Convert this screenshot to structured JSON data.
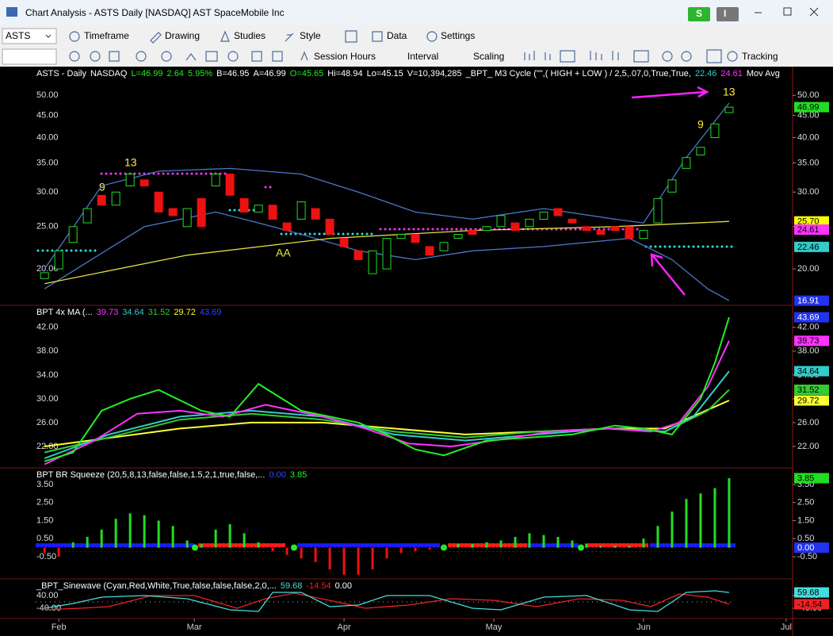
{
  "window": {
    "title": "Chart Analysis - ASTS Daily [NASDAQ] AST SpaceMobile Inc",
    "buttons": [
      "S",
      "I"
    ]
  },
  "toolbar": {
    "symbol": "ASTS",
    "menus": [
      "Timeframe",
      "Drawing",
      "Studies",
      "Style",
      "Data",
      "Settings"
    ],
    "menus2": [
      "Session Hours",
      "Interval",
      "Scaling",
      "Tracking"
    ]
  },
  "time_axis": {
    "xlim": [
      -0.8,
      105.9
    ],
    "xticks": [
      {
        "value": 3,
        "label": "Feb"
      },
      {
        "value": 22,
        "label": "Mar"
      },
      {
        "value": 43,
        "label": "Apr"
      },
      {
        "value": 64,
        "label": "May"
      },
      {
        "value": 85,
        "label": "Jun"
      },
      {
        "value": 105,
        "label": "Jul"
      }
    ]
  },
  "annotations": [
    "13",
    "9",
    "9",
    "13",
    "AA"
  ],
  "chart_data": [
    {
      "type": "candlestick",
      "log_scale": true,
      "header": [
        "ASTS - Daily",
        "NASDAQ",
        "L=46.99",
        "2.64",
        "5.95%",
        "B=46.95",
        "A=46.99",
        "O=45.65",
        "Hi=48.94",
        "Lo=45.15",
        "V=10,394,285",
        "_BPT_ M3 Cycle (\"\",( HIGH  +  LOW ) / 2,5,.07,0,True,True,",
        "22.46",
        "24.61",
        "Mov Avg"
      ],
      "ylim": [
        16.5,
        58.2
      ],
      "yticks": [
        {
          "value": 20,
          "label": "20.00"
        },
        {
          "value": 25,
          "label": "25.00"
        },
        {
          "value": 30,
          "label": "30.00"
        },
        {
          "value": 35,
          "label": "35.00"
        },
        {
          "value": 40,
          "label": "40.00"
        },
        {
          "value": 45,
          "label": "45.00"
        },
        {
          "value": 50,
          "label": "50.00"
        }
      ],
      "up_color": "#22dd22",
      "down_color": "#ee1111",
      "x": [
        1,
        3,
        5,
        7,
        9,
        11,
        13,
        15,
        17,
        19,
        21,
        23,
        25,
        27,
        29,
        31,
        33,
        35,
        37,
        39,
        41,
        43,
        45,
        47,
        49,
        51,
        53,
        55,
        57,
        59,
        61,
        63,
        65,
        67,
        69,
        71,
        73,
        75,
        77,
        79,
        81,
        83,
        85,
        87,
        89,
        91,
        93,
        95,
        97
      ],
      "open": [
        19,
        20,
        23,
        25.5,
        29.5,
        28,
        31,
        32,
        30,
        27.5,
        25,
        29,
        31,
        33,
        29,
        27,
        28,
        25.5,
        26,
        27.5,
        26,
        23.5,
        22,
        19.5,
        20,
        23.5,
        24,
        22.5,
        22,
        23.5,
        24.5,
        24.5,
        25,
        25.5,
        25,
        26,
        27.5,
        26,
        25,
        24.5,
        25,
        25,
        23.5,
        25.5,
        30,
        34,
        36.5,
        40,
        45.65
      ],
      "close": [
        19.6,
        22,
        25,
        27.5,
        28,
        30,
        33,
        31,
        27,
        26.5,
        27.5,
        25,
        33,
        29.5,
        27,
        28,
        26,
        24.5,
        28.5,
        26,
        24,
        22.5,
        21,
        22,
        23.5,
        24,
        23,
        21.5,
        23,
        24,
        24,
        25,
        26.5,
        24.5,
        26,
        27,
        26.5,
        25.5,
        24.5,
        24,
        24.5,
        23.5,
        24.5,
        29,
        32,
        36,
        38,
        43,
        46.99
      ],
      "series": [
        {
          "color": "#4a78c8",
          "x": [
            1,
            9,
            17,
            27,
            37,
            45,
            53,
            61,
            71,
            81,
            85,
            91,
            97
          ],
          "values": [
            20,
            31,
            33.5,
            34,
            33,
            30,
            27,
            26,
            27.5,
            26,
            25.5,
            36,
            48
          ]
        },
        {
          "color": "#4a78c8",
          "x": [
            1,
            15,
            25,
            31,
            37,
            45,
            53,
            61,
            71,
            83,
            89,
            94,
            97
          ],
          "values": [
            18,
            25,
            27,
            25.5,
            24,
            22,
            21,
            22,
            22.5,
            23.5,
            21,
            18,
            16.91
          ]
        },
        {
          "color": "#e0e040",
          "x": [
            1,
            21,
            41,
            61,
            81,
            97
          ],
          "values": [
            18.5,
            21.5,
            23.5,
            24.5,
            25,
            25.7
          ]
        }
      ],
      "badges": [
        {
          "value": 46.99,
          "color": "#22dd22"
        },
        {
          "value": 25.7,
          "label": "25.70",
          "color": "#ffff00"
        },
        {
          "value": 24.61,
          "color": "#ff33ff"
        },
        {
          "value": 22.46,
          "color": "#33cccc"
        },
        {
          "value": 16.91,
          "color": "#2233ee"
        }
      ]
    },
    {
      "type": "line",
      "header": [
        "BPT 4x MA (...",
        "39.73",
        "34.64",
        "31.52",
        "29.72",
        "43.69"
      ],
      "ylim": [
        18.4,
        45.7
      ],
      "yticks": [
        {
          "value": 22,
          "label": "22.00"
        },
        {
          "value": 26,
          "label": "26.00"
        },
        {
          "value": 30,
          "label": "30.00"
        },
        {
          "value": 34,
          "label": "34.00"
        },
        {
          "value": 38,
          "label": "38.00"
        },
        {
          "value": 42,
          "label": "42.00"
        }
      ],
      "series": [
        {
          "color": "#ffff33",
          "x": [
            1,
            20,
            30,
            40,
            50,
            60,
            70,
            80,
            88,
            97
          ],
          "values": [
            22,
            25,
            26,
            26,
            25,
            24,
            24.5,
            25,
            25,
            29.72
          ]
        },
        {
          "color": "#33cc33",
          "x": [
            1,
            10,
            20,
            30,
            40,
            50,
            60,
            70,
            80,
            88,
            94,
            97
          ],
          "values": [
            21,
            23.5,
            26.5,
            27.5,
            26.5,
            24.5,
            23.5,
            24.5,
            25,
            24.5,
            28,
            31.52
          ]
        },
        {
          "color": "#33cccc",
          "x": [
            1,
            10,
            20,
            30,
            40,
            50,
            60,
            70,
            80,
            88,
            92,
            97
          ],
          "values": [
            20,
            24,
            27,
            28,
            27,
            24,
            23,
            24,
            25,
            24.5,
            27,
            34.64
          ]
        },
        {
          "color": "#ff33ff",
          "x": [
            1,
            8,
            14,
            20,
            26,
            32,
            40,
            46,
            52,
            58,
            64,
            72,
            80,
            86,
            90,
            94,
            97
          ],
          "values": [
            19,
            23,
            27.5,
            28,
            27,
            29,
            27,
            25,
            22.5,
            22,
            23,
            24.5,
            25,
            24.5,
            26,
            32,
            39.73
          ]
        },
        {
          "color": "#22ee22",
          "x": [
            1,
            5,
            9,
            13,
            17,
            23,
            27,
            31,
            37,
            41,
            45,
            49,
            53,
            57,
            63,
            69,
            75,
            81,
            85,
            89,
            93,
            95,
            97
          ],
          "values": [
            19.5,
            21,
            28,
            30,
            31.5,
            28,
            27,
            32.5,
            28,
            27,
            26,
            24,
            21.5,
            20.5,
            23,
            23.5,
            24,
            25.5,
            25,
            24,
            30,
            36,
            43.69
          ]
        }
      ],
      "badges": [
        {
          "value": 43.69,
          "color": "#2233ee"
        },
        {
          "value": 39.73,
          "color": "#ff33ff"
        },
        {
          "value": 34.64,
          "color": "#33cccc"
        },
        {
          "value": 31.52,
          "color": "#33cc33"
        },
        {
          "value": 29.72,
          "color": "#ffff33"
        }
      ]
    },
    {
      "type": "histogram",
      "header": [
        "BPT BR Squeeze (20,5,8,13,false,false,1.5,2,1,true,false,...",
        "0.00",
        "3.85"
      ],
      "ylim": [
        -1.73,
        4.42
      ],
      "yticks": [
        {
          "value": -0.5,
          "label": "-0.50"
        },
        {
          "value": 0.5,
          "label": "0.50"
        },
        {
          "value": 1.5,
          "label": "1.50"
        },
        {
          "value": 2.5,
          "label": "2.50"
        },
        {
          "value": 3.5,
          "label": "3.50"
        }
      ],
      "up_color": "#22dd22",
      "down_color": "#ee1111",
      "x": [
        1,
        3,
        5,
        7,
        9,
        11,
        13,
        15,
        17,
        19,
        21,
        23,
        25,
        27,
        29,
        31,
        33,
        35,
        37,
        39,
        41,
        43,
        45,
        47,
        49,
        51,
        53,
        55,
        57,
        59,
        61,
        63,
        65,
        67,
        69,
        71,
        73,
        75,
        77,
        79,
        81,
        83,
        85,
        87,
        89,
        91,
        93,
        95,
        97
      ],
      "values": [
        -0.3,
        -0.5,
        0.3,
        0.6,
        1,
        1.6,
        1.9,
        1.8,
        1.5,
        1.2,
        0.4,
        0.2,
        1,
        1.3,
        0.8,
        0.3,
        -0.2,
        -0.4,
        -0.6,
        -0.8,
        -1.2,
        -1.5,
        -1.5,
        -1.2,
        -0.6,
        -0.3,
        -0.2,
        -0.1,
        0.1,
        0.2,
        0.2,
        0.3,
        0.4,
        0.6,
        0.8,
        0.7,
        0.6,
        0.4,
        0.2,
        0.1,
        0.1,
        0.1,
        0.5,
        1.2,
        2,
        2.7,
        3,
        3.3,
        3.85
      ],
      "badges": [
        {
          "value": 3.85,
          "color": "#22dd22"
        },
        {
          "value": 0,
          "label": "0.00",
          "color": "#2233ee"
        }
      ]
    },
    {
      "type": "line",
      "header": [
        "_BPT_Sinewave (Cyan,Red,White,True,false,false,false,2,0,...",
        "59.68",
        "-14.54",
        "0.00"
      ],
      "ylim": [
        -105,
        145
      ],
      "yticks": [
        {
          "value": -40,
          "label": "-40.00"
        },
        {
          "value": 40,
          "label": "40.00"
        }
      ],
      "series": [
        {
          "color": "#ee2222",
          "x": [
            1,
            6,
            10,
            16,
            22,
            28,
            32,
            36,
            42,
            46,
            52,
            58,
            64,
            70,
            76,
            82,
            86,
            90,
            94,
            97
          ],
          "values": [
            -50,
            -40,
            -30,
            40,
            40,
            -40,
            20,
            55,
            0,
            -40,
            -20,
            20,
            10,
            -30,
            20,
            10,
            -30,
            50,
            30,
            -14.54
          ]
        },
        {
          "color": "#44dddd",
          "x": [
            1,
            5,
            9,
            15,
            21,
            27,
            31,
            33,
            37,
            41,
            45,
            49,
            55,
            61,
            65,
            71,
            77,
            83,
            87,
            91,
            95,
            97
          ],
          "values": [
            -40,
            -10,
            30,
            40,
            20,
            -50,
            -60,
            60,
            60,
            -30,
            -20,
            40,
            40,
            -40,
            -50,
            30,
            40,
            -50,
            -60,
            60,
            70,
            59.68
          ]
        }
      ],
      "badges": [
        {
          "value": 59.68,
          "color": "#44dddd"
        },
        {
          "value": -14.54,
          "color": "#ee2222"
        }
      ]
    }
  ]
}
